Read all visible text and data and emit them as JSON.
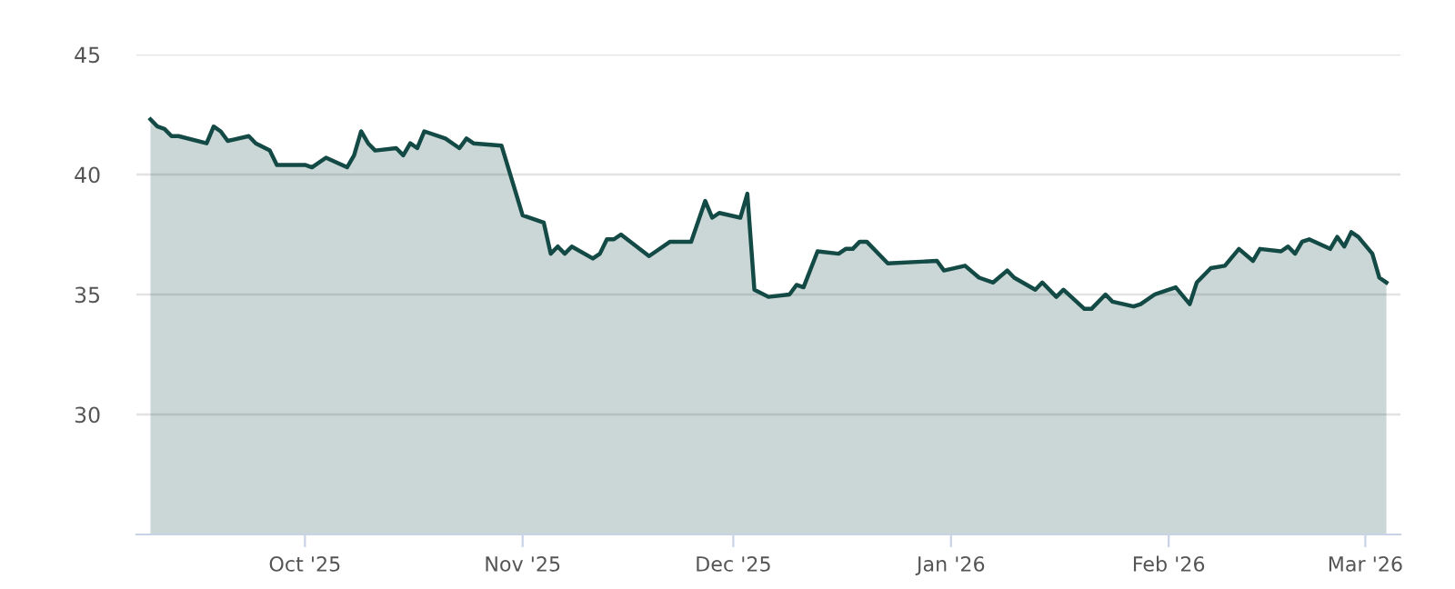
{
  "chart_data": {
    "type": "area",
    "x": [
      "2025-09-09",
      "2025-09-10",
      "2025-09-11",
      "2025-09-12",
      "2025-09-13",
      "2025-09-17",
      "2025-09-18",
      "2025-09-19",
      "2025-09-20",
      "2025-09-23",
      "2025-09-24",
      "2025-09-26",
      "2025-09-27",
      "2025-10-01",
      "2025-10-02",
      "2025-10-04",
      "2025-10-07",
      "2025-10-08",
      "2025-10-09",
      "2025-10-10",
      "2025-10-11",
      "2025-10-14",
      "2025-10-15",
      "2025-10-16",
      "2025-10-17",
      "2025-10-18",
      "2025-10-21",
      "2025-10-23",
      "2025-10-24",
      "2025-10-25",
      "2025-10-29",
      "2025-11-01",
      "2025-11-04",
      "2025-11-05",
      "2025-11-06",
      "2025-11-07",
      "2025-11-08",
      "2025-11-11",
      "2025-11-12",
      "2025-11-13",
      "2025-11-14",
      "2025-11-15",
      "2025-11-19",
      "2025-11-20",
      "2025-11-22",
      "2025-11-25",
      "2025-11-27",
      "2025-11-28",
      "2025-11-29",
      "2025-12-02",
      "2025-12-03",
      "2025-12-04",
      "2025-12-06",
      "2025-12-09",
      "2025-12-10",
      "2025-12-11",
      "2025-12-13",
      "2025-12-16",
      "2025-12-17",
      "2025-12-18",
      "2025-12-19",
      "2025-12-20",
      "2025-12-23",
      "2025-12-30",
      "2025-12-31",
      "2026-01-03",
      "2026-01-05",
      "2026-01-07",
      "2026-01-09",
      "2026-01-10",
      "2026-01-13",
      "2026-01-14",
      "2026-01-16",
      "2026-01-17",
      "2026-01-20",
      "2026-01-21",
      "2026-01-23",
      "2026-01-24",
      "2026-01-27",
      "2026-01-28",
      "2026-01-30",
      "2026-02-02",
      "2026-02-04",
      "2026-02-05",
      "2026-02-07",
      "2026-02-09",
      "2026-02-11",
      "2026-02-13",
      "2026-02-14",
      "2026-02-17",
      "2026-02-18",
      "2026-02-19",
      "2026-02-20",
      "2026-02-21",
      "2026-02-24",
      "2026-02-25",
      "2026-02-26",
      "2026-02-27",
      "2026-02-28",
      "2026-03-02",
      "2026-03-03",
      "2026-03-04"
    ],
    "series": [
      {
        "color": "#134a45",
        "values": [
          42.3,
          42.0,
          41.9,
          41.6,
          41.6,
          41.3,
          42.0,
          41.8,
          41.4,
          41.6,
          41.3,
          41.0,
          40.4,
          40.4,
          40.3,
          40.7,
          40.3,
          40.8,
          41.8,
          41.3,
          41.0,
          41.1,
          40.8,
          41.3,
          41.1,
          41.8,
          41.5,
          41.1,
          41.5,
          41.3,
          41.2,
          38.3,
          38.0,
          36.7,
          37.0,
          36.7,
          37.0,
          36.5,
          36.7,
          37.3,
          37.3,
          37.5,
          36.6,
          36.8,
          37.2,
          37.2,
          38.9,
          38.2,
          38.4,
          38.2,
          39.2,
          35.2,
          34.9,
          35.0,
          35.4,
          35.3,
          36.8,
          36.7,
          36.9,
          36.9,
          37.2,
          37.2,
          36.3,
          36.4,
          36.0,
          36.2,
          35.7,
          35.5,
          36.0,
          35.7,
          35.2,
          35.5,
          34.9,
          35.2,
          34.4,
          34.4,
          35.0,
          34.7,
          34.5,
          34.6,
          35.0,
          35.3,
          34.6,
          35.5,
          36.1,
          36.2,
          36.9,
          36.4,
          36.9,
          36.8,
          37.0,
          36.7,
          37.2,
          37.3,
          36.9,
          37.4,
          37.0,
          37.6,
          37.4,
          36.7,
          35.7,
          35.5
        ]
      }
    ],
    "xlim": [
      "2025-09-07",
      "2026-03-06"
    ],
    "xticks": [
      {
        "value": "2025-10-01",
        "label": "Oct '25"
      },
      {
        "value": "2025-11-01",
        "label": "Nov '25"
      },
      {
        "value": "2025-12-01",
        "label": "Dec '25"
      },
      {
        "value": "2026-01-01",
        "label": "Jan '26"
      },
      {
        "value": "2026-02-01",
        "label": "Feb '26"
      },
      {
        "value": "2026-03-01",
        "label": "Mar '26"
      }
    ],
    "ylim": [
      25,
      45
    ],
    "yticks": [
      30,
      35,
      40,
      45
    ],
    "grid": "y",
    "legend": false
  }
}
